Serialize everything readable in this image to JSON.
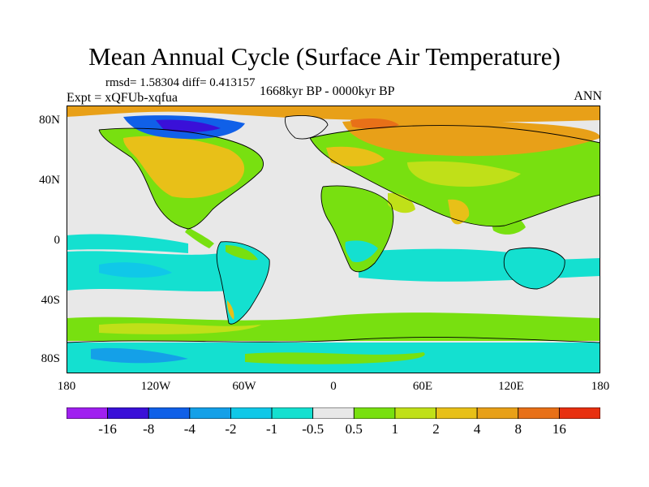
{
  "title": "Mean Annual Cycle (Surface Air Temperature)",
  "stats": "rmsd= 1.58304 diff= 0.413157",
  "experiment": "Expt = xQFUb-xqfua",
  "period": "1668kyr BP - 0000kyr BP",
  "season": "ANN",
  "lat_ticks": [
    "80N",
    "40N",
    "0",
    "40S",
    "80S"
  ],
  "lon_ticks": [
    "180",
    "120W",
    "60W",
    "0",
    "60E",
    "120E",
    "180"
  ],
  "colorbar": {
    "labels": [
      "-16",
      "-8",
      "-4",
      "-2",
      "-1",
      "-0.5",
      "0.5",
      "1",
      "2",
      "4",
      "8",
      "16"
    ],
    "colors": [
      "#a020f0",
      "#3a10d8",
      "#1060e8",
      "#14a0e8",
      "#10c8e8",
      "#14e0d0",
      "#e8e8e8",
      "#78e010",
      "#c0e018",
      "#e8c018",
      "#e8a018",
      "#e87018",
      "#e83010"
    ]
  },
  "colors": {
    "ocean_neutral": "#e8e8e8",
    "coastline": "#000000"
  }
}
